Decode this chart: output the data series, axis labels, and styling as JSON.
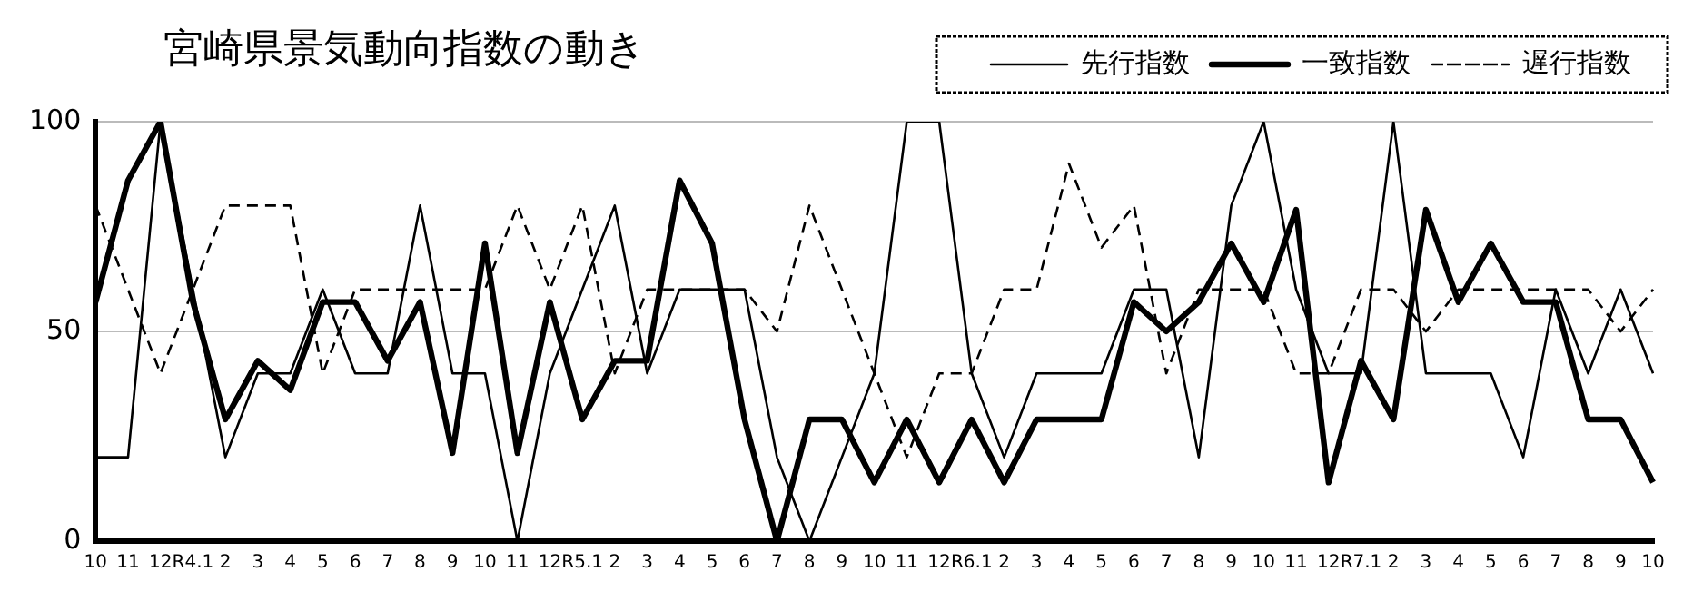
{
  "chart_data": {
    "type": "line",
    "title": "宮崎県景気動向指数の動き",
    "categories": [
      "10",
      "11",
      "12",
      "R4.1",
      "2",
      "3",
      "4",
      "5",
      "6",
      "7",
      "8",
      "9",
      "10",
      "11",
      "12",
      "R5.1",
      "2",
      "3",
      "4",
      "5",
      "6",
      "7",
      "8",
      "9",
      "10",
      "11",
      "12",
      "R6.1",
      "2",
      "3",
      "4",
      "5",
      "6",
      "7",
      "8",
      "9",
      "10",
      "11",
      "12",
      "R7.1",
      "2",
      "3",
      "4",
      "5",
      "6",
      "7",
      "8",
      "9",
      "10"
    ],
    "series": [
      {
        "name": "先行指数",
        "color": "#000000",
        "line_style": "solid",
        "values": [
          20,
          20,
          100,
          60,
          20,
          40,
          40,
          60,
          40,
          40,
          80,
          40,
          40,
          0,
          40,
          60,
          80,
          40,
          60,
          60,
          60,
          20,
          0,
          20,
          40,
          100,
          100,
          40,
          20,
          40,
          40,
          40,
          60,
          60,
          20,
          80,
          100,
          60,
          40,
          40,
          100,
          40,
          40,
          40,
          20,
          60,
          40,
          60,
          40
        ]
      },
      {
        "name": "一致指数",
        "color": "#000000",
        "line_style": "solid",
        "values": [
          57,
          86,
          100,
          57,
          29,
          43,
          36,
          57,
          57,
          43,
          57,
          21,
          71,
          21,
          57,
          29,
          43,
          43,
          86,
          71,
          29,
          0,
          29,
          29,
          14,
          29,
          14,
          29,
          14,
          29,
          29,
          29,
          57,
          50,
          57,
          71,
          57,
          79,
          14,
          43,
          29,
          79,
          57,
          71,
          57,
          57,
          29,
          29,
          14
        ]
      },
      {
        "name": "遅行指数",
        "color": "#000000",
        "line_style": "dashed",
        "values": [
          80,
          60,
          40,
          60,
          80,
          80,
          80,
          40,
          60,
          60,
          60,
          60,
          60,
          80,
          60,
          80,
          40,
          60,
          60,
          60,
          60,
          50,
          80,
          60,
          40,
          20,
          40,
          40,
          60,
          60,
          90,
          70,
          80,
          40,
          60,
          60,
          60,
          40,
          40,
          60,
          60,
          50,
          60,
          60,
          60,
          60,
          60,
          50,
          60
        ]
      }
    ],
    "ylim": [
      0,
      100
    ],
    "yticks": [
      0,
      50,
      100
    ],
    "grid": "y",
    "legend": "top right",
    "marker": "none"
  }
}
